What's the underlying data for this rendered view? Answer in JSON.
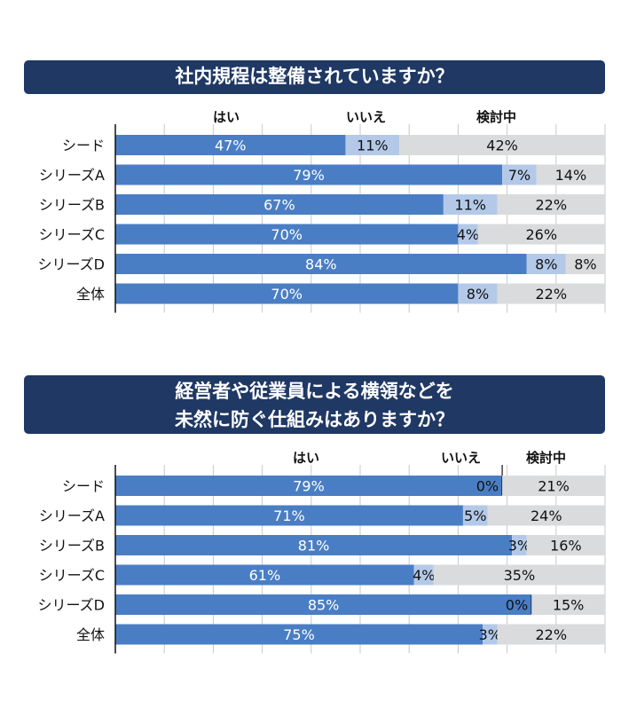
{
  "charts": [
    {
      "title_lines": [
        "社内規程は整備されていますか？"
      ],
      "legend": {
        "yes": "はい",
        "no": "いいえ",
        "consider": "検討中"
      }
    },
    {
      "title_lines": [
        "経営者や従業員による横領などを",
        "未然に防ぐ仕組みはありますか？"
      ],
      "legend": {
        "yes": "はい",
        "no": "いいえ",
        "consider": "検討中"
      }
    }
  ],
  "colors": {
    "yes": "#4a7ec4",
    "no": "#b4c9e8",
    "consider": "#d9dbdc",
    "banner": "#1f3864"
  },
  "chart_data": [
    {
      "type": "bar",
      "stacked": true,
      "orientation": "horizontal",
      "title": "社内規程は整備されていますか？",
      "categories": [
        "シード",
        "シリーズA",
        "シリーズB",
        "シリーズC",
        "シリーズD",
        "全体"
      ],
      "series": [
        {
          "name": "はい",
          "values": [
            47,
            79,
            67,
            70,
            84,
            70
          ]
        },
        {
          "name": "いいえ",
          "values": [
            11,
            7,
            11,
            4,
            8,
            8
          ]
        },
        {
          "name": "検討中",
          "values": [
            42,
            14,
            22,
            26,
            8,
            22
          ]
        }
      ],
      "xlim": [
        0,
        100
      ],
      "unit": "%",
      "grid": true
    },
    {
      "type": "bar",
      "stacked": true,
      "orientation": "horizontal",
      "title": "経営者や従業員による横領などを未然に防ぐ仕組みはありますか？",
      "categories": [
        "シード",
        "シリーズA",
        "シリーズB",
        "シリーズC",
        "シリーズD",
        "全体"
      ],
      "series": [
        {
          "name": "はい",
          "values": [
            79,
            71,
            81,
            61,
            85,
            75
          ]
        },
        {
          "name": "いいえ",
          "values": [
            0,
            5,
            3,
            4,
            0,
            3
          ]
        },
        {
          "name": "検討中",
          "values": [
            21,
            24,
            16,
            35,
            15,
            22
          ]
        }
      ],
      "xlim": [
        0,
        100
      ],
      "unit": "%",
      "grid": true
    }
  ]
}
